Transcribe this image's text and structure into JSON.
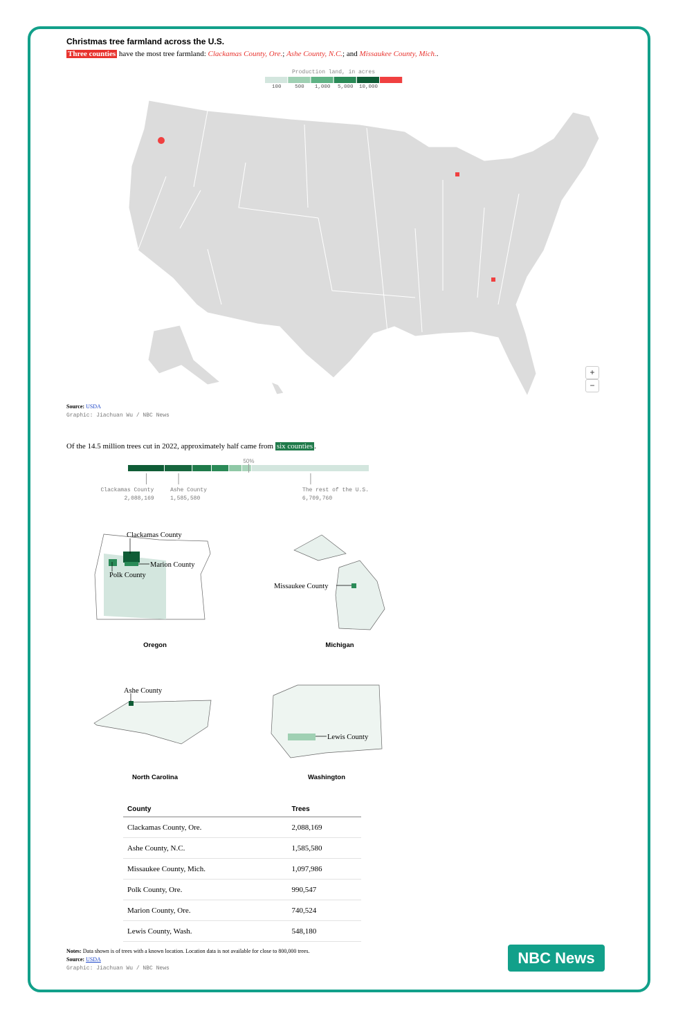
{
  "header": {
    "title": "Christmas tree farmland across the U.S.",
    "highlight": "Three counties",
    "lead": " have the most tree farmland: ",
    "counties": [
      "Clackamas County, Ore.",
      "Ashe County, N.C.",
      "Missaukee County, Mich."
    ],
    "separators": [
      "; ",
      "; and ",
      "."
    ]
  },
  "legend": {
    "title": "Production land, in acres",
    "colors": [
      "#d3e6de",
      "#9fd0b3",
      "#5fb284",
      "#2a8a57",
      "#0f5c36",
      "#f04040"
    ],
    "ticks": [
      100,
      500,
      {
        "value": 1000,
        "label": "1,000"
      },
      {
        "value": 5000,
        "label": "5,000"
      },
      {
        "value": 10000,
        "label": "10,000"
      }
    ]
  },
  "zoom": {
    "in": "+",
    "out": "−"
  },
  "map_source": {
    "label": "Source:",
    "link": "USDA",
    "credit": "Graphic: Jiachuan Wu / NBC News"
  },
  "trees": {
    "sentence": "Of the 14.5 million trees cut in 2022, approximately half came from ",
    "highlight": "six counties",
    "end": ".",
    "midpoint": {
      "value": 50,
      "label": "50%"
    },
    "segments": [
      {
        "name": "Clackamas County",
        "value": 2088169,
        "label": "2,088,169",
        "color": "#0f5c36"
      },
      {
        "name": "Ashe County",
        "value": 1585580,
        "label": "1,585,580",
        "color": "#17663e"
      },
      {
        "name": "Missaukee County",
        "value": 1097986,
        "color": "#1f7a4a"
      },
      {
        "name": "Polk County",
        "value": 990547,
        "color": "#2a8a57"
      },
      {
        "name": "Marion County",
        "value": 740524,
        "color": "#8fc8a6"
      },
      {
        "name": "Lewis County",
        "value": 548180,
        "color": "#a9d5bb"
      },
      {
        "name": "The rest of the U.S.",
        "value": 6709760,
        "label": "6,709,760",
        "color": "#d3e6de"
      }
    ],
    "annotated": [
      0,
      1,
      6
    ]
  },
  "state_maps": [
    {
      "state": "Oregon",
      "counties": [
        "Clackamas County",
        "Marion County",
        "Polk County"
      ]
    },
    {
      "state": "Michigan",
      "counties": [
        "Missaukee County"
      ]
    },
    {
      "state": "North Carolina",
      "counties": [
        "Ashe County"
      ]
    },
    {
      "state": "Washington",
      "counties": [
        "Lewis County"
      ]
    }
  ],
  "table": {
    "headers": [
      "County",
      "Trees"
    ],
    "rows": [
      [
        "Clackamas County, Ore.",
        "2,088,169"
      ],
      [
        "Ashe County, N.C.",
        "1,585,580"
      ],
      [
        "Missaukee County, Mich.",
        "1,097,986"
      ],
      [
        "Polk County, Ore.",
        "990,547"
      ],
      [
        "Marion County, Ore.",
        "740,524"
      ],
      [
        "Lewis County, Wash.",
        "548,180"
      ]
    ]
  },
  "notes": {
    "label": "Notes:",
    "text": "Data shown is of trees with a known location. Location data is not available for close to 800,000 trees.",
    "source_label": "Source:",
    "source_link": "USDA",
    "credit": "Graphic: Jiachuan Wu / NBC News"
  },
  "badge": "NBC News"
}
